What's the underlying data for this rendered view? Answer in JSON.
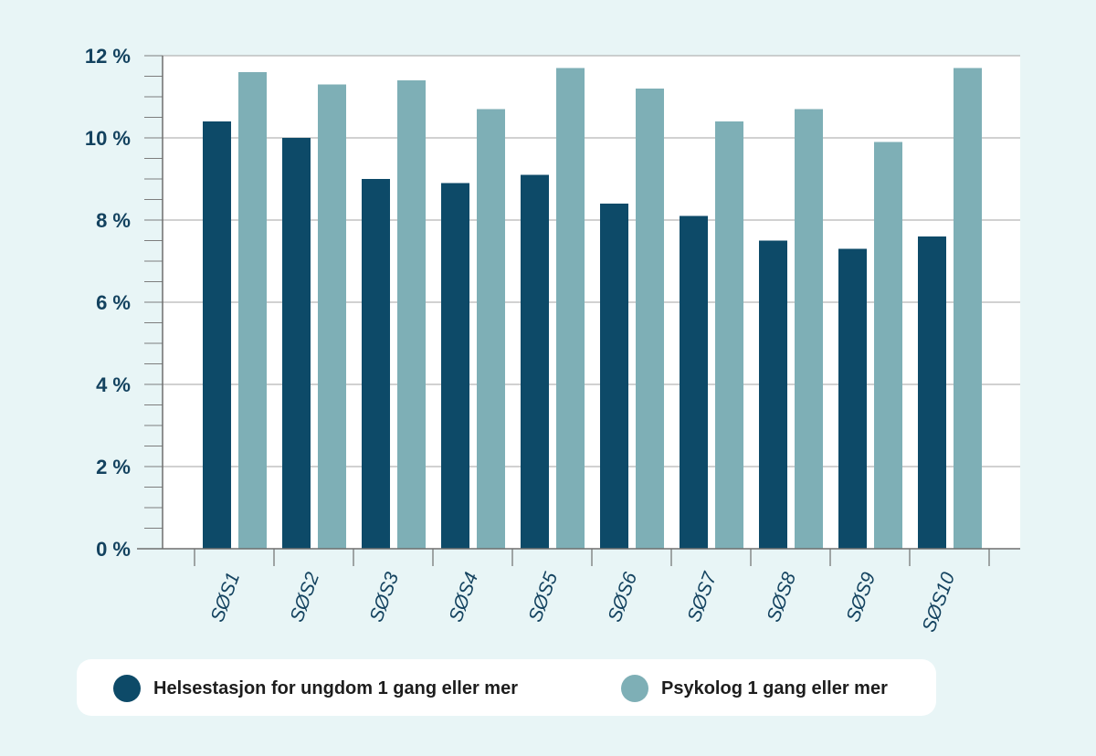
{
  "chart_data": {
    "type": "bar",
    "categories": [
      "SØS1",
      "SØS2",
      "SØS3",
      "SØS4",
      "SØS5",
      "SØS6",
      "SØS7",
      "SØS8",
      "SØS9",
      "SØS10"
    ],
    "series": [
      {
        "name": "Helsestasjon for ungdom 1 gang eller mer",
        "color": "#0d4a68",
        "values": [
          10.4,
          10.0,
          9.0,
          8.9,
          9.1,
          8.4,
          8.1,
          7.5,
          7.3,
          7.6
        ]
      },
      {
        "name": "Psykolog 1 gang eller mer",
        "color": "#7eafb6",
        "values": [
          11.6,
          11.3,
          11.4,
          10.7,
          11.7,
          11.2,
          10.4,
          10.7,
          9.9,
          11.7
        ]
      }
    ],
    "ylim": [
      0,
      12
    ],
    "yticks": [
      "0 %",
      "2 %",
      "4 %",
      "6 %",
      "8 %",
      "10 %",
      "12 %"
    ],
    "grid": true,
    "legend_position": "bottom"
  },
  "legend": {
    "items": [
      {
        "label": "Helsestasjon for ungdom 1 gang eller mer",
        "color": "#0d4a68"
      },
      {
        "label": "Psykolog 1 gang eller mer",
        "color": "#7eafb6"
      }
    ]
  }
}
